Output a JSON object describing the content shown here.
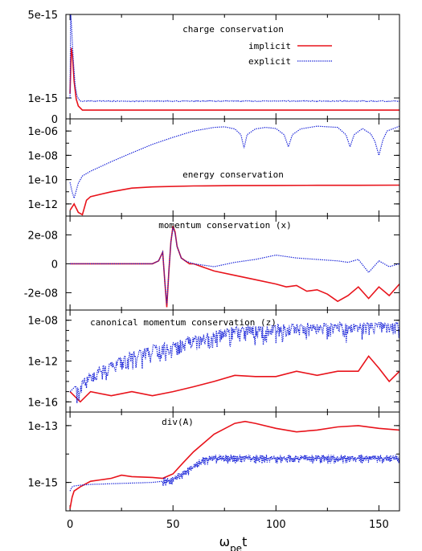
{
  "chart_data": {
    "type": "line",
    "xlabel": "ω_pe t",
    "xlim": [
      -2,
      160
    ],
    "xticks": [
      0,
      50,
      100,
      150
    ],
    "xtick_labels": [
      "0",
      "50",
      "100",
      "150"
    ],
    "colors": {
      "implicit": "#e8131b",
      "explicit": "#1520d8"
    },
    "legend": {
      "placement": "top-right",
      "entries": [
        "implicit",
        "explicit"
      ]
    },
    "panels": [
      {
        "id": "charge",
        "title": "charge conservation",
        "scale": "linear",
        "ylim": [
          0,
          5e-15
        ],
        "yticks": [
          0,
          1e-15,
          5e-15
        ],
        "ytick_labels": [
          "0",
          "1e-15",
          "5e-15"
        ],
        "series": [
          {
            "name": "implicit",
            "style": "solid",
            "x": [
              0,
              0.6,
              1.2,
              2,
              3,
              4,
              6,
              10,
              40,
              80,
              120,
              160
            ],
            "y": [
              1.2e-15,
              3.4e-15,
              3e-15,
              1.8e-15,
              9.5e-16,
              6.2e-16,
              4.2e-16,
              4.2e-16,
              4.2e-16,
              4.2e-16,
              4.2e-16,
              4.2e-16
            ]
          },
          {
            "name": "explicit",
            "style": "dotted",
            "x": [
              0,
              0.3,
              0.8,
              1.5,
              2.5,
              3.5,
              5,
              10,
              50,
              100,
              160
            ],
            "y": [
              1e-15,
              5.2e-15,
              4.3e-15,
              2.9e-15,
              1.6e-15,
              1.05e-15,
              8.5e-16,
              8.5e-16,
              8.5e-16,
              8.5e-16,
              8.5e-16
            ]
          }
        ]
      },
      {
        "id": "energy",
        "title": "energy conservation",
        "scale": "log",
        "ylim": [
          1e-13,
          1e-05
        ],
        "yticks": [
          1e-12,
          1e-10,
          1e-08,
          1e-06
        ],
        "ytick_labels": [
          "1e-12",
          "1e-10",
          "1e-08",
          "1e-06"
        ],
        "series": [
          {
            "name": "implicit",
            "style": "solid",
            "x": [
              0,
              2,
              4,
              6,
              8,
              10,
              20,
              30,
              40,
              60,
              80,
              100,
              120,
              140,
              160
            ],
            "y": [
              3e-13,
              1e-12,
              2e-13,
              1.3e-13,
              2e-12,
              4e-12,
              1e-11,
              2e-11,
              2.5e-11,
              3e-11,
              3.2e-11,
              3.3e-11,
              3.4e-11,
              3.4e-11,
              3.5e-11
            ]
          },
          {
            "name": "explicit",
            "style": "dotted",
            "x": [
              0,
              1,
              2,
              4,
              6,
              10,
              20,
              30,
              40,
              50,
              60,
              70,
              75,
              80,
              83,
              84.5,
              86,
              90,
              95,
              100,
              104,
              106,
              108,
              112,
              120,
              130,
              134,
              136,
              138,
              142,
              146,
              148,
              150,
              152,
              154,
              160
            ],
            "y": [
              6e-11,
              1e-11,
              3e-12,
              5e-11,
              2e-10,
              5e-10,
              3e-09,
              1.6e-08,
              8e-08,
              3e-07,
              1e-06,
              2e-06,
              2.2e-06,
              1.5e-06,
              5e-07,
              4e-08,
              5e-07,
              1.5e-06,
              2e-06,
              1.6e-06,
              5e-07,
              5e-08,
              5e-07,
              1.5e-06,
              2.5e-06,
              2e-06,
              5e-07,
              5e-08,
              5e-07,
              1.6e-06,
              6e-07,
              1.5e-07,
              1e-08,
              2e-07,
              1e-06,
              2.5e-06
            ]
          }
        ]
      },
      {
        "id": "momentum",
        "title": "momentum conservation (x)",
        "scale": "linear",
        "ylim": [
          -3.2e-08,
          3.3e-08
        ],
        "yticks": [
          -2e-08,
          0,
          2e-08
        ],
        "ytick_labels": [
          "-2e-08",
          "0",
          "2e-08"
        ],
        "series": [
          {
            "name": "implicit",
            "style": "solid",
            "x": [
              0,
              40,
              43,
              45,
              46,
              47,
              48,
              49,
              50,
              51,
              52,
              54,
              56,
              58,
              60,
              70,
              80,
              90,
              100,
              105,
              110,
              115,
              120,
              125,
              130,
              135,
              140,
              145,
              150,
              155,
              160
            ],
            "y": [
              0,
              0,
              2e-09,
              8e-09,
              -1.2e-08,
              -3e-08,
              -5e-09,
              1.5e-08,
              2.6e-08,
              2.2e-08,
              1.2e-08,
              4e-09,
              2e-09,
              0,
              0,
              -5e-09,
              -8e-09,
              -1.1e-08,
              -1.4e-08,
              -1.6e-08,
              -1.5e-08,
              -1.9e-08,
              -1.8e-08,
              -2.1e-08,
              -2.6e-08,
              -2.2e-08,
              -1.6e-08,
              -2.4e-08,
              -1.6e-08,
              -2.2e-08,
              -1.4e-08
            ]
          },
          {
            "name": "explicit",
            "style": "dotted",
            "x": [
              0,
              40,
              43,
              45,
              46,
              47,
              48,
              49,
              50,
              51,
              52,
              54,
              56,
              58,
              60,
              70,
              80,
              90,
              100,
              110,
              120,
              130,
              135,
              140,
              145,
              150,
              155,
              160
            ],
            "y": [
              0,
              0,
              2e-09,
              8e-09,
              -1.2e-08,
              -2.8e-08,
              -5e-09,
              1.5e-08,
              2.5e-08,
              2.1e-08,
              1.2e-08,
              4e-09,
              2e-09,
              1e-09,
              0,
              -2e-09,
              1e-09,
              3e-09,
              6e-09,
              4e-09,
              3e-09,
              2e-09,
              1e-09,
              3e-09,
              -6e-09,
              2e-09,
              -2e-09,
              0
            ]
          }
        ]
      },
      {
        "id": "canonical",
        "title": "canonical momentum conservation (z)",
        "scale": "log",
        "ylim": [
          1e-17,
          1e-07
        ],
        "yticks": [
          1e-16,
          1e-12,
          1e-08
        ],
        "ytick_labels": [
          "1e-16",
          "1e-12",
          "1e-08"
        ],
        "series": [
          {
            "name": "implicit",
            "style": "solid",
            "x": [
              0,
              5,
              10,
              20,
              30,
              40,
              50,
              60,
              70,
              80,
              90,
              100,
              110,
              120,
              130,
              140,
              145,
              150,
              155,
              160
            ],
            "y": [
              1e-15,
              1e-16,
              1e-15,
              4e-16,
              1e-15,
              4e-16,
              1e-15,
              3e-15,
              1e-14,
              4e-14,
              3e-14,
              3e-14,
              1e-13,
              4e-14,
              1e-13,
              1e-13,
              3e-12,
              2e-13,
              1e-14,
              1e-13
            ]
          },
          {
            "name": "explicit",
            "style": "dotted",
            "x": [
              0,
              5,
              10,
              20,
              30,
              40,
              50,
              60,
              70,
              80,
              90,
              100,
              120,
              140,
              160
            ],
            "y": [
              1e-15,
              1e-14,
              1e-13,
              1e-12,
              1e-11,
              4e-11,
              1e-10,
              4e-10,
              1e-09,
              3e-09,
              4e-09,
              5e-09,
              6e-09,
              7e-09,
              8e-09
            ]
          }
        ]
      },
      {
        "id": "divA",
        "title": "div(A)",
        "scale": "log",
        "ylim": [
          1e-16,
          3e-13
        ],
        "yticks": [
          1e-15,
          1e-13
        ],
        "ytick_labels": [
          "1e-15",
          "1e-13"
        ],
        "series": [
          {
            "name": "implicit",
            "style": "solid",
            "x": [
              0,
              1,
              2,
              5,
              10,
              20,
              25,
              30,
              40,
              45,
              50,
              55,
              60,
              70,
              80,
              85,
              90,
              100,
              110,
              120,
              130,
              140,
              150,
              160
            ],
            "y": [
              1.2e-16,
              3e-16,
              5e-16,
              7e-16,
              1.1e-15,
              1.4e-15,
              1.8e-15,
              1.6e-15,
              1.5e-15,
              1.4e-15,
              2e-15,
              5e-15,
              1.2e-14,
              5e-14,
              1.2e-13,
              1.4e-13,
              1.2e-13,
              8e-14,
              6e-14,
              7e-14,
              9e-14,
              1e-13,
              8e-14,
              7e-14
            ]
          },
          {
            "name": "explicit",
            "style": "dotted",
            "x": [
              0,
              1,
              2,
              5,
              10,
              20,
              30,
              40,
              45,
              50,
              55,
              60,
              65,
              70,
              80,
              100,
              120,
              140,
              160
            ],
            "y": [
              5e-16,
              7e-16,
              7.5e-16,
              8e-16,
              8.5e-16,
              9e-16,
              9.5e-16,
              1e-15,
              1.1e-15,
              1.3e-15,
              2e-15,
              3.5e-15,
              6e-15,
              7e-15,
              7e-15,
              7e-15,
              7e-15,
              7e-15,
              7e-15
            ]
          }
        ]
      }
    ]
  }
}
